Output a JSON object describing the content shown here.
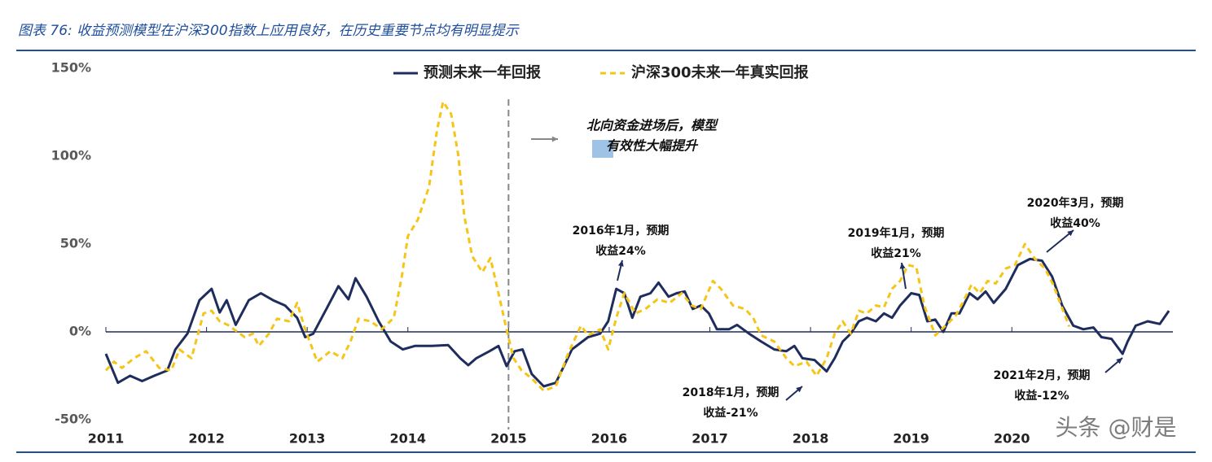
{
  "chart_data": {
    "type": "line",
    "title": "图表 76: 收益预测模型在沪深300指数上应用良好，在历史重要节点均有明显提示",
    "xlim": [
      2011,
      2021.6
    ],
    "xticks": [
      2011,
      2012,
      2013,
      2014,
      2015,
      2016,
      2017,
      2018,
      2019,
      2020
    ],
    "ylim": [
      -50,
      150
    ],
    "yticks": [
      {
        "value": -50,
        "label": "-50%"
      },
      {
        "value": 0,
        "label": "0%"
      },
      {
        "value": 50,
        "label": "50%"
      },
      {
        "value": 100,
        "label": "100%"
      },
      {
        "value": 150,
        "label": "150%"
      }
    ],
    "vlines": [
      2015
    ],
    "series": [
      {
        "name": "预测未来一年回报",
        "color": "#1f2d5c",
        "dashed": false,
        "x": [
          2011.0,
          2011.12,
          2011.24,
          2011.36,
          2011.48,
          2011.61,
          2011.69,
          2011.81,
          2011.93,
          2012.05,
          2012.13,
          2012.2,
          2012.29,
          2012.42,
          2012.54,
          2012.66,
          2012.78,
          2012.9,
          2012.98,
          2013.06,
          2013.19,
          2013.31,
          2013.41,
          2013.48,
          2013.59,
          2013.71,
          2013.83,
          2013.95,
          2014.07,
          2014.24,
          2014.4,
          2014.52,
          2014.6,
          2014.68,
          2014.81,
          2014.9,
          2014.98,
          2015.06,
          2015.14,
          2015.23,
          2015.35,
          2015.47,
          2015.63,
          2015.79,
          2015.91,
          2015.99,
          2016.07,
          2016.15,
          2016.23,
          2016.31,
          2016.41,
          2016.49,
          2016.59,
          2016.67,
          2016.75,
          2016.83,
          2016.91,
          2016.99,
          2017.07,
          2017.19,
          2017.27,
          2017.39,
          2017.51,
          2017.64,
          2017.76,
          2017.84,
          2017.92,
          2018.04,
          2018.16,
          2018.24,
          2018.32,
          2018.4,
          2018.48,
          2018.56,
          2018.65,
          2018.73,
          2018.81,
          2018.89,
          2019.0,
          2019.08,
          2019.16,
          2019.24,
          2019.32,
          2019.4,
          2019.48,
          2019.58,
          2019.66,
          2019.74,
          2019.82,
          2019.94,
          2020.06,
          2020.18,
          2020.3,
          2020.4,
          2020.5,
          2020.61,
          2020.71,
          2020.81,
          2020.89,
          2020.99,
          2021.1,
          2021.15,
          2021.23,
          2021.35,
          2021.47,
          2021.56
        ],
        "values": [
          -12.5,
          -29,
          -25,
          -28,
          -25,
          -22,
          -10,
          -1,
          18,
          24.5,
          11,
          18,
          4,
          18,
          22,
          18,
          15,
          8,
          -3,
          -1,
          13,
          26,
          18.5,
          30.5,
          20,
          6,
          -5.5,
          -10,
          -8,
          -8,
          -7.5,
          -15,
          -19,
          -15,
          -11,
          -8,
          -19.5,
          -11,
          -10,
          -24,
          -31,
          -29,
          -10,
          -3,
          -1,
          6,
          24.5,
          22,
          8,
          20,
          22,
          28,
          20,
          22,
          23,
          13,
          15,
          10.5,
          1.5,
          1.5,
          4,
          -1,
          -5.5,
          -10,
          -11,
          -8,
          -15,
          -16,
          -22.5,
          -15,
          -5.5,
          -1,
          6,
          8,
          6,
          10.5,
          8,
          15,
          22,
          21,
          6,
          7,
          0,
          10.5,
          10.5,
          22,
          18.5,
          23,
          16.5,
          24.5,
          38,
          41.5,
          40.5,
          31.5,
          15,
          3.5,
          1.5,
          2.5,
          -3,
          -4,
          -12.5,
          -5.5,
          3.5,
          6,
          4.5,
          12
        ]
      },
      {
        "name": "沪深300未来一年真实回报",
        "color": "#f5c518",
        "dashed": true,
        "x": [
          2011.0,
          2011.08,
          2011.16,
          2011.28,
          2011.4,
          2011.53,
          2011.65,
          2011.73,
          2011.85,
          2011.97,
          2012.05,
          2012.13,
          2012.21,
          2012.38,
          2012.46,
          2012.52,
          2012.62,
          2012.7,
          2012.82,
          2012.9,
          2012.98,
          2013.1,
          2013.23,
          2013.35,
          2013.43,
          2013.51,
          2013.63,
          2013.74,
          2013.86,
          2013.94,
          2014.0,
          2014.1,
          2014.21,
          2014.29,
          2014.35,
          2014.43,
          2014.5,
          2014.56,
          2014.64,
          2014.74,
          2014.82,
          2014.9,
          2014.98,
          2015.05,
          2015.13,
          2015.23,
          2015.35,
          2015.47,
          2015.59,
          2015.72,
          2015.79,
          2015.91,
          2015.99,
          2016.07,
          2016.15,
          2016.26,
          2016.36,
          2016.48,
          2016.6,
          2016.72,
          2016.82,
          2016.91,
          2017.03,
          2017.11,
          2017.23,
          2017.35,
          2017.43,
          2017.51,
          2017.64,
          2017.76,
          2017.84,
          2017.96,
          2018.06,
          2018.16,
          2018.24,
          2018.32,
          2018.4,
          2018.48,
          2018.56,
          2018.65,
          2018.73,
          2018.81,
          2018.89,
          2018.97,
          2019.05,
          2019.13,
          2019.24,
          2019.34,
          2019.44,
          2019.52,
          2019.6,
          2019.68,
          2019.76,
          2019.84,
          2019.94,
          2020.03,
          2020.13,
          2020.23,
          2020.33,
          2020.41,
          2020.49,
          2020.57
        ],
        "values": [
          -22,
          -17,
          -20.5,
          -15,
          -11,
          -20.5,
          -22,
          -10,
          -15,
          10.5,
          12,
          6,
          4,
          -3,
          -1,
          -8,
          -1,
          7.5,
          6,
          16.5,
          1.5,
          -17,
          -11,
          -15,
          -5.5,
          7.5,
          6,
          1.5,
          8,
          31.5,
          54.5,
          64,
          82.5,
          115,
          131,
          124,
          101,
          66,
          43,
          34,
          42,
          22,
          1.5,
          -15,
          -22,
          -26.5,
          -33.5,
          -31,
          -12.5,
          3.5,
          -2,
          1.5,
          -10,
          8,
          22,
          10.5,
          13,
          18.5,
          16.5,
          22,
          15,
          13,
          29,
          24.5,
          15,
          13,
          8,
          -2,
          -5.5,
          -15,
          -19.5,
          -17,
          -25,
          -15,
          -1,
          6,
          -1,
          12,
          10.5,
          15,
          14,
          24.5,
          29,
          38,
          37,
          15,
          -2,
          3.5,
          9,
          17.5,
          27,
          22,
          29,
          27.5,
          36,
          38,
          50,
          41.5,
          36,
          27,
          15,
          3
        ]
      }
    ],
    "annotations": [
      [
        "北向资金进场后，模型",
        "有效性大幅提升"
      ],
      [
        "2016年1月，预期",
        "收益24%"
      ],
      [
        "2018年1月，预期",
        "收益-21%"
      ],
      [
        "2019年1月，预期",
        "收益21%"
      ],
      [
        "2020年3月，预期",
        "收益40%"
      ],
      [
        "2021年2月，预期",
        "收益-12%"
      ]
    ],
    "watermark": "头条 @财是"
  }
}
